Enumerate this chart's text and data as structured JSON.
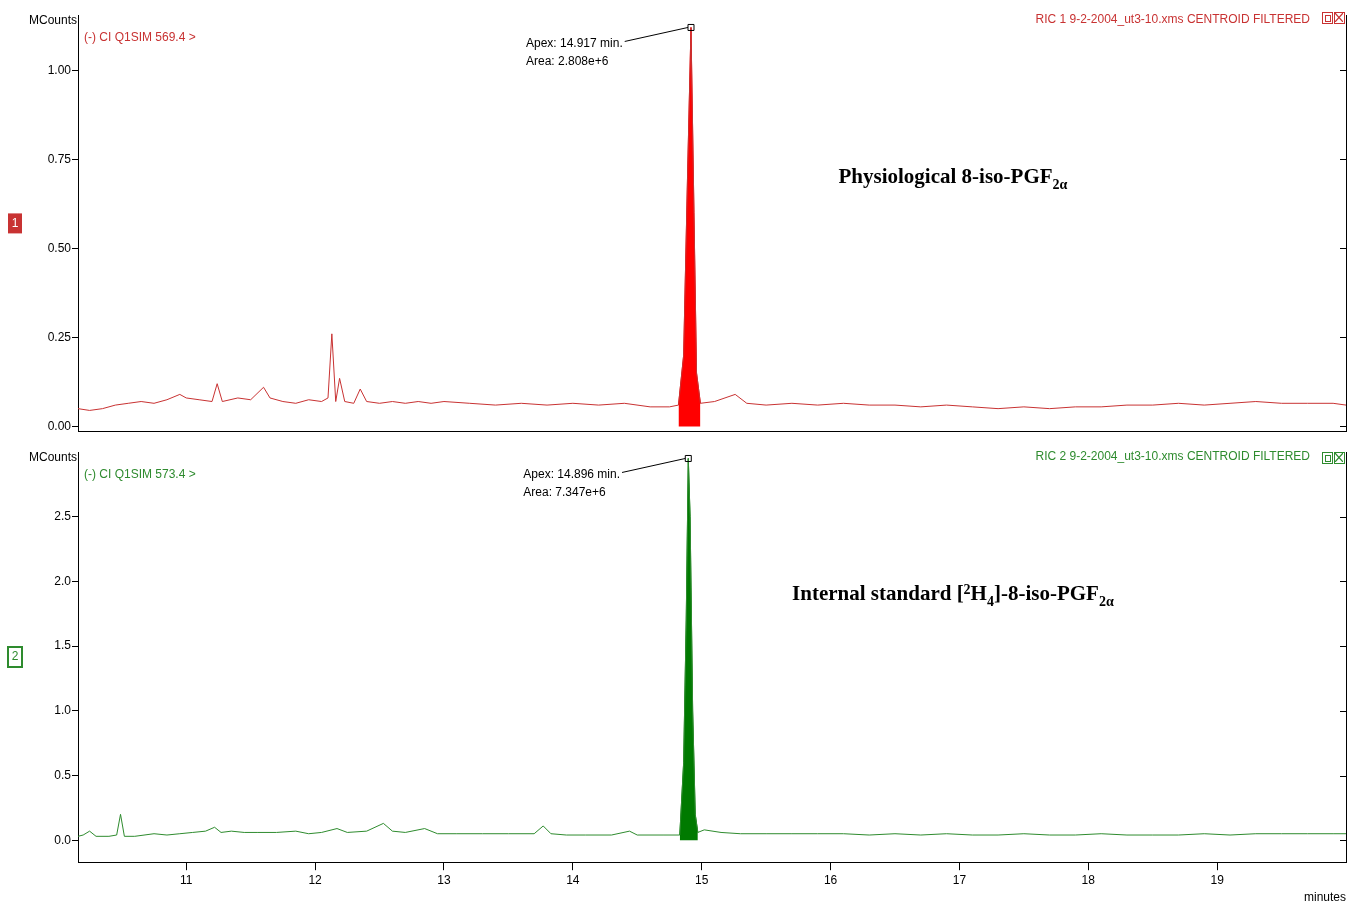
{
  "chart_data": [
    {
      "type": "line",
      "title": "Physiological 8-iso-PGF$_{2α}$",
      "ylabel": "MCounts",
      "xlim": [
        10.16,
        20.0
      ],
      "xticks": [
        11,
        12,
        13,
        14,
        15,
        16,
        17,
        18,
        19
      ],
      "ylim": [
        -0.015,
        1.155
      ],
      "yticks": [
        {
          "value": 0,
          "label": "0.00"
        },
        {
          "value": 0.25,
          "label": "0.25"
        },
        {
          "value": 0.5,
          "label": "0.50"
        },
        {
          "value": 0.75,
          "label": "0.75"
        },
        {
          "value": 1,
          "label": "1.00"
        }
      ],
      "tick_labels": "y",
      "series": [
        {
          "color": "#c83232",
          "x": [
            10.16,
            10.25,
            10.35,
            10.45,
            10.55,
            10.65,
            10.75,
            10.85,
            10.95,
            11.0,
            11.1,
            11.2,
            11.24,
            11.28,
            11.4,
            11.5,
            11.6,
            11.65,
            11.75,
            11.85,
            11.95,
            12.05,
            12.1,
            12.13,
            12.16,
            12.19,
            12.23,
            12.3,
            12.35,
            12.4,
            12.5,
            12.6,
            12.7,
            12.8,
            12.9,
            13.0,
            13.2,
            13.4,
            13.6,
            13.8,
            14.0,
            14.2,
            14.4,
            14.6,
            14.75,
            14.82,
            14.86,
            14.89,
            14.917,
            14.94,
            14.96,
            14.99,
            15.1,
            15.26,
            15.35,
            15.5,
            15.7,
            15.9,
            16.1,
            16.3,
            16.5,
            16.7,
            16.9,
            17.1,
            17.3,
            17.5,
            17.7,
            17.9,
            18.1,
            18.3,
            18.5,
            18.7,
            18.9,
            19.1,
            19.3,
            19.5,
            19.7,
            19.9,
            20.0
          ],
          "values": [
            0.05,
            0.045,
            0.05,
            0.06,
            0.065,
            0.07,
            0.065,
            0.075,
            0.09,
            0.08,
            0.075,
            0.07,
            0.12,
            0.07,
            0.08,
            0.075,
            0.11,
            0.08,
            0.07,
            0.065,
            0.075,
            0.07,
            0.08,
            0.26,
            0.07,
            0.135,
            0.07,
            0.065,
            0.105,
            0.07,
            0.065,
            0.07,
            0.065,
            0.07,
            0.065,
            0.07,
            0.065,
            0.06,
            0.065,
            0.06,
            0.065,
            0.06,
            0.065,
            0.055,
            0.055,
            0.06,
            0.2,
            0.7,
            1.12,
            0.6,
            0.15,
            0.065,
            0.07,
            0.09,
            0.065,
            0.06,
            0.065,
            0.06,
            0.065,
            0.06,
            0.06,
            0.055,
            0.06,
            0.055,
            0.05,
            0.055,
            0.05,
            0.055,
            0.055,
            0.06,
            0.06,
            0.065,
            0.06,
            0.065,
            0.07,
            0.065,
            0.065,
            0.065,
            0.06
          ]
        },
        {
          "type": "area",
          "color": "#ff0000",
          "x": [
            14.82,
            14.86,
            14.89,
            14.917,
            14.94,
            14.96,
            14.99
          ],
          "values": [
            0.06,
            0.2,
            0.7,
            1.12,
            0.6,
            0.15,
            0.065
          ]
        }
      ],
      "annotations": [
        "(-) CI Q1SIM 569.4 >",
        "RIC 1 9-2-2004_ut3-10.xms CENTROID FILTERED",
        "1",
        "Area: 2.808e+6",
        {
          "text": "Apex: 14.917 min.",
          "x": 14.917,
          "y": 1.12
        }
      ]
    },
    {
      "type": "line",
      "title": "Internal standard [$^{2}$H$_{4}$]-8-iso-PGF$_{2α}$",
      "ylabel": "MCounts",
      "xlabel": "minutes",
      "xlim": [
        10.16,
        20.0
      ],
      "xticks": [
        11,
        12,
        13,
        14,
        15,
        16,
        17,
        18,
        19
      ],
      "ylim": [
        -0.17,
        3.0
      ],
      "yticks": [
        {
          "value": 0,
          "label": "0.0"
        },
        {
          "value": 0.5,
          "label": "0.5"
        },
        {
          "value": 1,
          "label": "1.0"
        },
        {
          "value": 1.5,
          "label": "1.5"
        },
        {
          "value": 2,
          "label": "2.0"
        },
        {
          "value": 2.5,
          "label": "2.5"
        }
      ],
      "series": [
        {
          "color": "#2e8b2e",
          "x": [
            10.16,
            10.2,
            10.25,
            10.3,
            10.4,
            10.46,
            10.49,
            10.52,
            10.6,
            10.75,
            10.85,
            10.95,
            11.05,
            11.15,
            11.22,
            11.27,
            11.35,
            11.45,
            11.55,
            11.7,
            11.85,
            11.95,
            12.05,
            12.17,
            12.25,
            12.4,
            12.53,
            12.6,
            12.7,
            12.85,
            12.95,
            13.1,
            13.3,
            13.5,
            13.7,
            13.77,
            13.83,
            13.95,
            14.1,
            14.3,
            14.44,
            14.5,
            14.7,
            14.83,
            14.86,
            14.88,
            14.896,
            14.91,
            14.93,
            14.95,
            14.97,
            15.02,
            15.15,
            15.3,
            15.5,
            15.7,
            15.9,
            16.1,
            16.3,
            16.5,
            16.7,
            16.9,
            17.1,
            17.3,
            17.5,
            17.7,
            17.9,
            18.1,
            18.3,
            18.5,
            18.7,
            18.9,
            19.1,
            19.3,
            19.5,
            19.7,
            19.9,
            20.0
          ],
          "values": [
            0.03,
            0.04,
            0.07,
            0.03,
            0.03,
            0.04,
            0.2,
            0.03,
            0.03,
            0.05,
            0.04,
            0.05,
            0.06,
            0.07,
            0.1,
            0.06,
            0.07,
            0.06,
            0.06,
            0.06,
            0.07,
            0.05,
            0.06,
            0.09,
            0.06,
            0.07,
            0.13,
            0.07,
            0.06,
            0.09,
            0.05,
            0.05,
            0.05,
            0.05,
            0.05,
            0.11,
            0.05,
            0.04,
            0.04,
            0.04,
            0.07,
            0.04,
            0.04,
            0.04,
            0.6,
            1.7,
            2.95,
            2.5,
            1.0,
            0.2,
            0.06,
            0.08,
            0.06,
            0.05,
            0.05,
            0.05,
            0.05,
            0.05,
            0.04,
            0.05,
            0.04,
            0.05,
            0.04,
            0.04,
            0.05,
            0.04,
            0.04,
            0.05,
            0.04,
            0.04,
            0.04,
            0.05,
            0.04,
            0.05,
            0.05,
            0.05,
            0.05,
            0.05
          ]
        },
        {
          "type": "area",
          "color": "#007a00",
          "x": [
            14.83,
            14.86,
            14.88,
            14.896,
            14.91,
            14.93,
            14.95,
            14.97
          ],
          "values": [
            0.04,
            0.6,
            1.7,
            2.95,
            2.5,
            1.0,
            0.2,
            0.06
          ]
        }
      ],
      "annotations": [
        "(-) CI Q1SIM 573.4 >",
        "RIC 2 9-2-2004_ut3-10.xms CENTROID FILTERED",
        "2",
        "Area: 7.347e+6",
        {
          "text": "Apex: 14.896 min.",
          "x": 14.896,
          "y": 2.95
        }
      ]
    }
  ]
}
